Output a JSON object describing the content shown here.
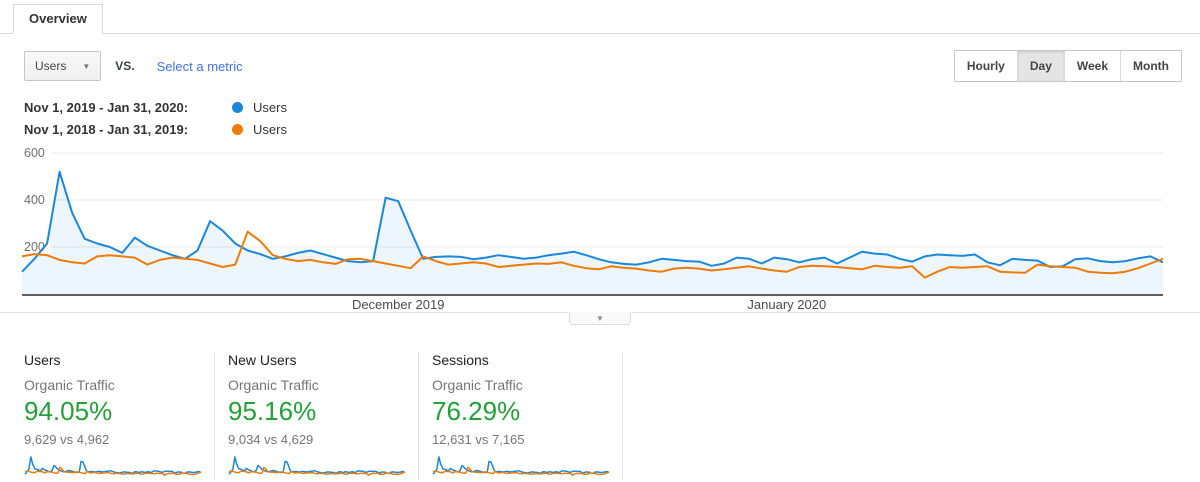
{
  "tabs": [
    {
      "label": "Overview"
    }
  ],
  "controls": {
    "metric_dropdown": {
      "value": "Users"
    },
    "vs_label": "vs.",
    "select_metric_label": "Select a metric",
    "granularity": {
      "options": [
        "Hourly",
        "Day",
        "Week",
        "Month"
      ],
      "selected": "Day"
    }
  },
  "legend": [
    {
      "range": "Nov 1, 2019 - Jan 31, 2020:",
      "series": "Users",
      "color": "#1b87d9"
    },
    {
      "range": "Nov 1, 2018 - Jan 31, 2019:",
      "series": "Users",
      "color": "#ee7b08"
    }
  ],
  "chart_data": {
    "type": "line",
    "title": "Users per day, current period vs previous year",
    "granularity": "Day",
    "ylim": [
      0,
      600
    ],
    "y_ticks": [
      200,
      400,
      600
    ],
    "grid": true,
    "legend_position": "top-left",
    "x_axis_labels": [
      {
        "label": "December 2019",
        "index": 30
      },
      {
        "label": "January 2020",
        "index": 61
      }
    ],
    "series": [
      {
        "name": "Users (Nov 1, 2019 - Jan 31, 2020)",
        "color": "#1b87d9",
        "fill": "rgba(27,135,217,0.08)",
        "values": [
          95,
          150,
          215,
          520,
          345,
          235,
          215,
          200,
          175,
          240,
          205,
          185,
          165,
          150,
          185,
          310,
          270,
          215,
          185,
          170,
          150,
          160,
          175,
          185,
          170,
          155,
          140,
          135,
          140,
          410,
          395,
          270,
          150,
          158,
          160,
          158,
          148,
          155,
          165,
          158,
          150,
          155,
          165,
          172,
          180,
          165,
          148,
          135,
          128,
          125,
          135,
          150,
          145,
          140,
          138,
          120,
          130,
          155,
          150,
          130,
          155,
          148,
          135,
          148,
          155,
          130,
          155,
          180,
          172,
          168,
          150,
          138,
          160,
          168,
          165,
          162,
          168,
          135,
          122,
          150,
          145,
          142,
          115,
          118,
          148,
          152,
          140,
          135,
          140,
          152,
          160,
          135
        ]
      },
      {
        "name": "Users (Nov 1, 2018 - Jan 31, 2019)",
        "color": "#ee7b08",
        "values": [
          160,
          170,
          165,
          145,
          135,
          130,
          160,
          165,
          160,
          155,
          125,
          145,
          155,
          150,
          145,
          130,
          115,
          125,
          265,
          225,
          165,
          150,
          140,
          145,
          135,
          128,
          148,
          150,
          140,
          130,
          120,
          110,
          160,
          140,
          125,
          130,
          135,
          130,
          115,
          120,
          125,
          130,
          128,
          135,
          120,
          110,
          105,
          118,
          112,
          108,
          100,
          95,
          108,
          112,
          108,
          100,
          105,
          112,
          118,
          108,
          100,
          95,
          115,
          120,
          118,
          115,
          110,
          105,
          120,
          115,
          112,
          118,
          70,
          95,
          115,
          112,
          115,
          118,
          95,
          92,
          90,
          125,
          118,
          115,
          112,
          95,
          90,
          88,
          95,
          110,
          130,
          150
        ]
      }
    ]
  },
  "cards": [
    {
      "title": "Users",
      "subtitle": "Organic Traffic",
      "change": "94.05%",
      "comparison": "9,629 vs 4,962"
    },
    {
      "title": "New Users",
      "subtitle": "Organic Traffic",
      "change": "95.16%",
      "comparison": "9,034 vs 4,629"
    },
    {
      "title": "Sessions",
      "subtitle": "Organic Traffic",
      "change": "76.29%",
      "comparison": "12,631 vs 7,165"
    }
  ],
  "colors": {
    "current_series": "#1b87d9",
    "previous_series": "#ee7b08",
    "area_fill": "rgba(27,135,217,0.08)",
    "positive_change": "#23a038",
    "link": "#4272db",
    "gridline": "#e8e8e8",
    "axis_line": "#606060"
  }
}
